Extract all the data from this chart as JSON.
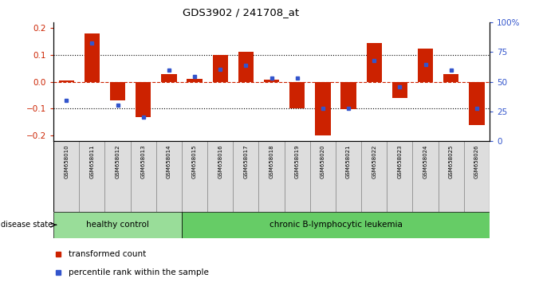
{
  "title": "GDS3902 / 241708_at",
  "samples": [
    "GSM658010",
    "GSM658011",
    "GSM658012",
    "GSM658013",
    "GSM658014",
    "GSM658015",
    "GSM658016",
    "GSM658017",
    "GSM658018",
    "GSM658019",
    "GSM658020",
    "GSM658021",
    "GSM658022",
    "GSM658023",
    "GSM658024",
    "GSM658025",
    "GSM658026"
  ],
  "red_bars": [
    0.005,
    0.18,
    -0.07,
    -0.13,
    0.03,
    0.01,
    0.1,
    0.112,
    0.008,
    -0.1,
    -0.2,
    -0.102,
    0.145,
    -0.06,
    0.122,
    0.03,
    -0.16
  ],
  "blue_squares": [
    -0.068,
    0.143,
    -0.088,
    -0.13,
    0.042,
    0.02,
    0.045,
    0.062,
    0.015,
    0.015,
    -0.1,
    -0.1,
    0.08,
    -0.02,
    0.063,
    0.043,
    -0.1
  ],
  "healthy_count": 5,
  "bar_color": "#cc2200",
  "sq_color": "#3355cc",
  "ylim": [
    -0.22,
    0.22
  ],
  "y2lim": [
    0,
    100
  ],
  "background": "#ffffff",
  "label_red": "transformed count",
  "label_blue": "percentile rank within the sample",
  "healthy_color": "#99dd99",
  "leukemia_color": "#66cc66",
  "disease_state_label": "disease state",
  "healthy_label": "healthy control",
  "leukemia_label": "chronic B-lymphocytic leukemia",
  "bar_width": 0.6,
  "yticks_left": [
    -0.2,
    -0.1,
    0.0,
    0.1,
    0.2
  ],
  "yticks_right": [
    0,
    25,
    50,
    75,
    100
  ],
  "ytick_labels_right": [
    "0",
    "25",
    "50",
    "75",
    "100%"
  ],
  "hlines_dotted": [
    -0.1,
    0.1
  ],
  "hline_zero": 0.0
}
